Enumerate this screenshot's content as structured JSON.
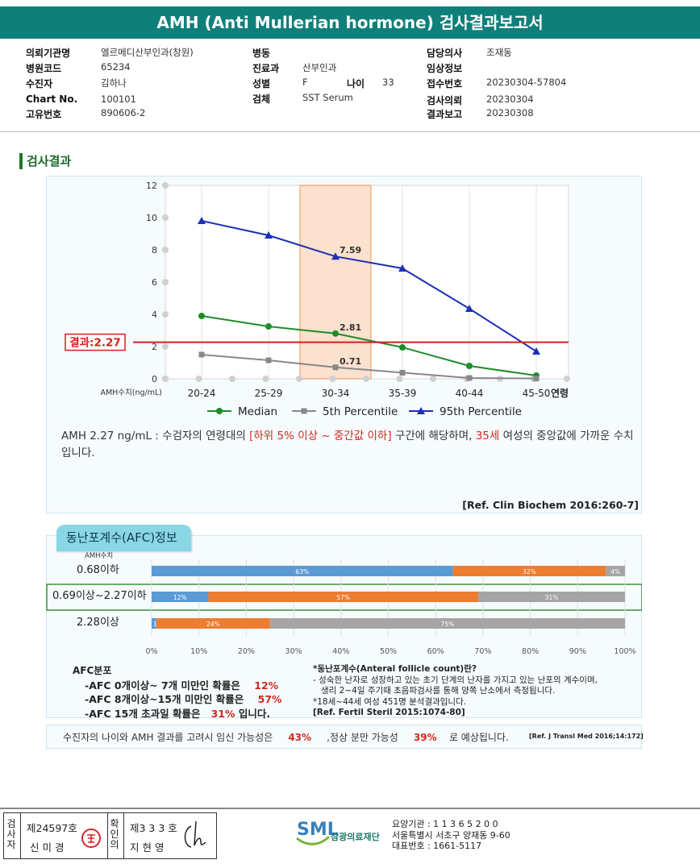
{
  "report": {
    "title": "AMH (Anti Mullerian hormone) 검사결과보고서"
  },
  "header": {
    "col1": [
      {
        "label": "의뢰기관명",
        "value": "엘르메디산부인과(창원)"
      },
      {
        "label": "병원코드",
        "value": "65234"
      },
      {
        "label": "수진자",
        "value": "김하나"
      },
      {
        "label": "Chart No.",
        "value": "100101"
      },
      {
        "label": "고유번호",
        "value": "890606-2"
      }
    ],
    "col2": [
      {
        "label": "병동",
        "value": ""
      },
      {
        "label": "진료과",
        "value": "산부인과"
      },
      {
        "label": "성별",
        "value": "F"
      },
      {
        "label": "검체",
        "value": "SST Serum"
      }
    ],
    "age": {
      "label": "나이",
      "value": "33"
    },
    "col3": [
      {
        "label": "담당의사",
        "value": "조재동"
      },
      {
        "label": "임상정보",
        "value": ""
      },
      {
        "label": "접수번호",
        "value": "20230304-57804"
      },
      {
        "label": "검사의뢰",
        "value": "20230304"
      },
      {
        "label": "결과보고",
        "value": "20230308"
      }
    ]
  },
  "section": {
    "result_title": "검사결과"
  },
  "chart_data": {
    "type": "line",
    "categories": [
      "20-24",
      "25-29",
      "30-34",
      "35-39",
      "40-44",
      "45-50"
    ],
    "series": [
      {
        "name": "Median",
        "values": [
          3.9,
          3.25,
          2.81,
          1.95,
          0.8,
          0.2
        ],
        "color": "#1e8c28",
        "marker": "circle"
      },
      {
        "name": "5th Percentile",
        "values": [
          1.5,
          1.15,
          0.71,
          0.38,
          0.05,
          0.02
        ],
        "color": "#888888",
        "marker": "square"
      },
      {
        "name": "95th Percentile",
        "values": [
          9.8,
          8.9,
          7.59,
          6.85,
          4.35,
          1.7
        ],
        "color": "#1c2fb5",
        "marker": "triangle"
      }
    ],
    "ylim": [
      0,
      12
    ],
    "yticks": [
      0,
      2,
      4,
      6,
      8,
      10,
      12
    ],
    "ylabel": "AMH수치(ng/mL)",
    "xlabel": "연령",
    "highlight_category": "30-34",
    "data_labels": [
      {
        "series": "95th Percentile",
        "category": "30-34",
        "text": "7.59"
      },
      {
        "series": "Median",
        "category": "30-34",
        "text": "2.81"
      },
      {
        "series": "5th Percentile",
        "category": "30-34",
        "text": "0.71"
      }
    ],
    "result_line": {
      "value": 2.27,
      "label": "결과:2.27",
      "color": "#d81e1e"
    },
    "legend_position": "bottom"
  },
  "interpretation": {
    "part1": "AMH  2.27 ng/mL : 수검자의 연령대의 ",
    "part2": "[하위 5% 이상 ~ 중간값 이하]",
    "part3": " 구간에 해당하며, ",
    "part4": "35세",
    "part5": " 여성의 중앙값에 가까운 수치입니다."
  },
  "ref1": "[Ref. Clin Biochem 2016:260-7]",
  "afc": {
    "tab_title": "동난포계수(AFC)정보",
    "amh_label": "AMH수치",
    "rows": [
      {
        "label": "0.68이하",
        "segments": [
          63,
          32,
          4
        ],
        "labels": [
          "63%",
          "32%",
          "4%"
        ],
        "highlighted": false
      },
      {
        "label": "0.69이상~2.27이하",
        "segments": [
          12,
          57,
          31
        ],
        "labels": [
          "12%",
          "57%",
          "31%"
        ],
        "highlighted": true
      },
      {
        "label": "2.28이상",
        "segments": [
          1,
          24,
          75
        ],
        "labels": [
          "1%",
          "24%",
          "75%"
        ],
        "highlighted": false
      }
    ],
    "segment_colors": [
      "#5b9bd5",
      "#ed7d31",
      "#a5a5a5"
    ],
    "axis_ticks": [
      "0%",
      "10%",
      "20%",
      "30%",
      "40%",
      "50%",
      "60%",
      "70%",
      "80%",
      "90%",
      "100%"
    ],
    "dist_title": "AFC분포",
    "dist": [
      {
        "text": "-AFC  0개이상~ 7개 미만인 확률은",
        "pct": "12%",
        "tail": ""
      },
      {
        "text": "-AFC  8개이상~15개 미만인 확률은",
        "pct": "57%",
        "tail": ""
      },
      {
        "text": "-AFC  15개 초과일 확률은",
        "pct": "31%",
        "tail": " 입니다."
      }
    ],
    "note": [
      "*동난포계수(Anteral follicle count)란?",
      "- 성숙한 난자로 성장하고 있는 초기 단계의 난자를 가지고 있는 난포의 계수이며,",
      "   생리 2~4일 주기때 초음파검사를 통해 양쪽 난소에서 측정됩니다.",
      "*18세~44세 여성 451명 분석결과입니다.",
      "[Ref. Fertil Steril 2015:1074-80]"
    ]
  },
  "pregnancy": {
    "t1": "수진자의  나이와 AMH 결과를 고려시 임신 가능성은",
    "p1": "43%",
    "t2": ",정상 분만 가능성",
    "p2": "39%",
    "t3": "로 예상됩니다.",
    "ref": "[Ref. J Transl Med 2016;14:172]"
  },
  "footer": {
    "examiner_label": "검사자",
    "examiner_no": "제24597호",
    "examiner_name": "신 미 경",
    "confirm_label": "확인의",
    "doctor_no": "제3 3 3 호",
    "doctor_name": "지 현 영",
    "org_logo": "SML",
    "org_name": "삼광의료재단",
    "org_code": "요양기관 : 1 1 3 6 5 2 0 0",
    "org_address": "서울특별시 서초구 양재동 9-60",
    "org_phone": "대표번호 : 1661-5117"
  }
}
